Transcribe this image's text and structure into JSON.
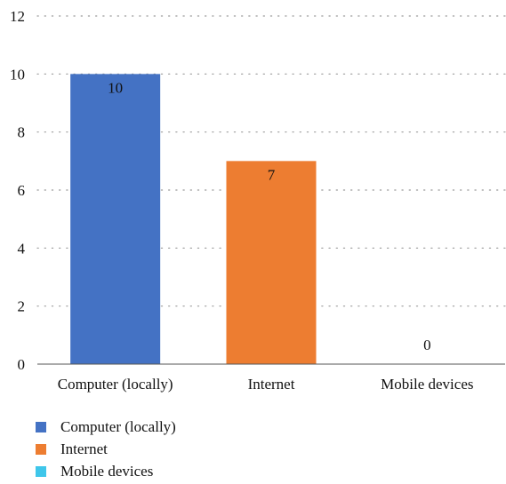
{
  "chart_data": {
    "type": "bar",
    "categories": [
      "Computer (locally)",
      "Internet",
      "Mobile devices"
    ],
    "values": [
      10,
      7,
      0
    ],
    "data_labels": [
      "10",
      "7",
      "0"
    ],
    "colors": [
      "#4472c4",
      "#ed7d31",
      "#3fc6ea"
    ],
    "ylim": [
      0,
      12
    ],
    "y_ticks": [
      "0",
      "2",
      "4",
      "6",
      "8",
      "10",
      "12"
    ],
    "y_tick_values": [
      0,
      2,
      4,
      6,
      8,
      10,
      12
    ],
    "grid": true,
    "grid_style": "dotted",
    "legend": {
      "position": "bottom-left",
      "entries": [
        "Computer (locally)",
        "Internet",
        "Mobile devices"
      ]
    }
  }
}
